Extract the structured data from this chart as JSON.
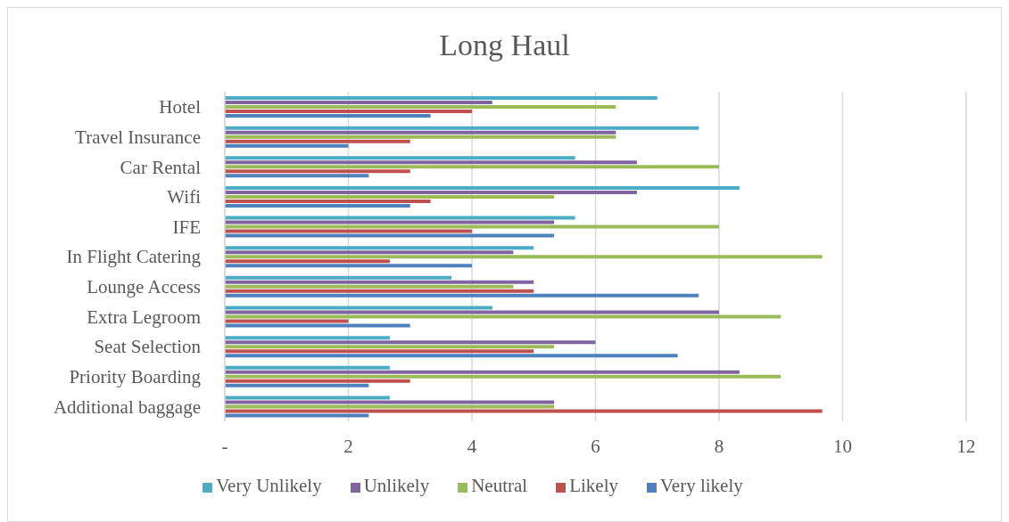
{
  "chart_data": {
    "type": "bar",
    "orientation": "horizontal",
    "title": "Long Haul",
    "categories": [
      "Hotel",
      "Travel Insurance",
      "Car Rental",
      "Wifi",
      "IFE",
      "In Flight Catering",
      "Lounge Access",
      "Extra Legroom",
      "Seat Selection",
      "Priority Boarding",
      "Additional baggage"
    ],
    "series": [
      {
        "name": "Very Unlikely",
        "color": "#4bacc6",
        "values": [
          7.0,
          7.67,
          5.67,
          8.33,
          5.67,
          5.0,
          3.67,
          4.33,
          2.67,
          2.67,
          2.67
        ]
      },
      {
        "name": "Unlikely",
        "color": "#8064a2",
        "values": [
          4.33,
          6.33,
          6.67,
          6.67,
          5.33,
          4.67,
          5.0,
          8.0,
          6.0,
          8.33,
          5.33
        ]
      },
      {
        "name": "Neutral",
        "color": "#9bbb59",
        "values": [
          6.33,
          6.33,
          8.0,
          5.33,
          8.0,
          9.67,
          4.67,
          9.0,
          5.33,
          9.0,
          5.33
        ]
      },
      {
        "name": "Likely",
        "color": "#c0504d",
        "values": [
          4.0,
          3.0,
          3.0,
          3.33,
          4.0,
          2.67,
          5.0,
          2.0,
          5.0,
          3.0,
          9.67
        ]
      },
      {
        "name": "Very likely",
        "color": "#4f81bd",
        "values": [
          3.33,
          2.0,
          2.33,
          3.0,
          5.33,
          4.0,
          7.67,
          3.0,
          7.33,
          2.33,
          2.33
        ]
      }
    ],
    "xlim": [
      0,
      12
    ],
    "xticks": [
      {
        "value": 0,
        "label": "-"
      },
      2,
      4,
      6,
      8,
      10,
      12
    ],
    "grid": "x",
    "legend": "bottom"
  }
}
